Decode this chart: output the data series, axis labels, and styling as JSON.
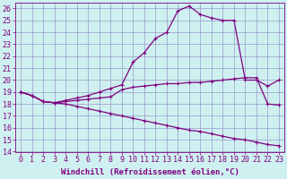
{
  "xlabel": "Windchill (Refroidissement éolien,°C)",
  "bg_color": "#cff0f0",
  "line_color": "#800080",
  "grid_color": "#9999cc",
  "xlim": [
    -0.5,
    23.5
  ],
  "ylim": [
    14,
    26.5
  ],
  "xticks": [
    0,
    1,
    2,
    3,
    4,
    5,
    6,
    7,
    8,
    9,
    10,
    11,
    12,
    13,
    14,
    15,
    16,
    17,
    18,
    19,
    20,
    21,
    22,
    23
  ],
  "yticks": [
    14,
    15,
    16,
    17,
    18,
    19,
    20,
    21,
    22,
    23,
    24,
    25,
    26
  ],
  "line1_x": [
    0,
    1,
    2,
    3,
    4,
    5,
    6,
    7,
    8,
    9,
    10,
    11,
    12,
    13,
    14,
    15,
    16,
    17,
    18,
    19,
    20,
    21,
    22,
    23
  ],
  "line1_y": [
    19,
    18.7,
    18.2,
    18.1,
    18.3,
    18.5,
    18.7,
    19.0,
    19.3,
    19.6,
    21.5,
    22.3,
    23.5,
    24.0,
    25.8,
    26.2,
    25.5,
    25.2,
    25.0,
    25.0,
    20.0,
    20.0,
    19.5,
    20.0
  ],
  "line2_x": [
    0,
    1,
    2,
    3,
    4,
    5,
    6,
    7,
    8,
    9,
    10,
    11,
    12,
    13,
    14,
    15,
    16,
    17,
    18,
    19,
    20,
    21,
    22,
    23
  ],
  "line2_y": [
    19,
    18.7,
    18.2,
    18.1,
    18.2,
    18.3,
    18.4,
    18.5,
    18.6,
    19.2,
    19.4,
    19.5,
    19.6,
    19.7,
    19.7,
    19.8,
    19.8,
    19.9,
    20.0,
    20.1,
    20.2,
    20.2,
    18.0,
    17.9
  ],
  "line3_x": [
    0,
    1,
    2,
    3,
    4,
    5,
    6,
    7,
    8,
    9,
    10,
    11,
    12,
    13,
    14,
    15,
    16,
    17,
    18,
    19,
    20,
    21,
    22,
    23
  ],
  "line3_y": [
    19,
    18.7,
    18.2,
    18.1,
    18.0,
    17.8,
    17.6,
    17.4,
    17.2,
    17.0,
    16.8,
    16.6,
    16.4,
    16.2,
    16.0,
    15.8,
    15.7,
    15.5,
    15.3,
    15.1,
    15.0,
    14.8,
    14.6,
    14.5
  ],
  "marker": "+",
  "markersize": 3,
  "linewidth": 0.9,
  "xlabel_fontsize": 6.5,
  "tick_fontsize": 6
}
